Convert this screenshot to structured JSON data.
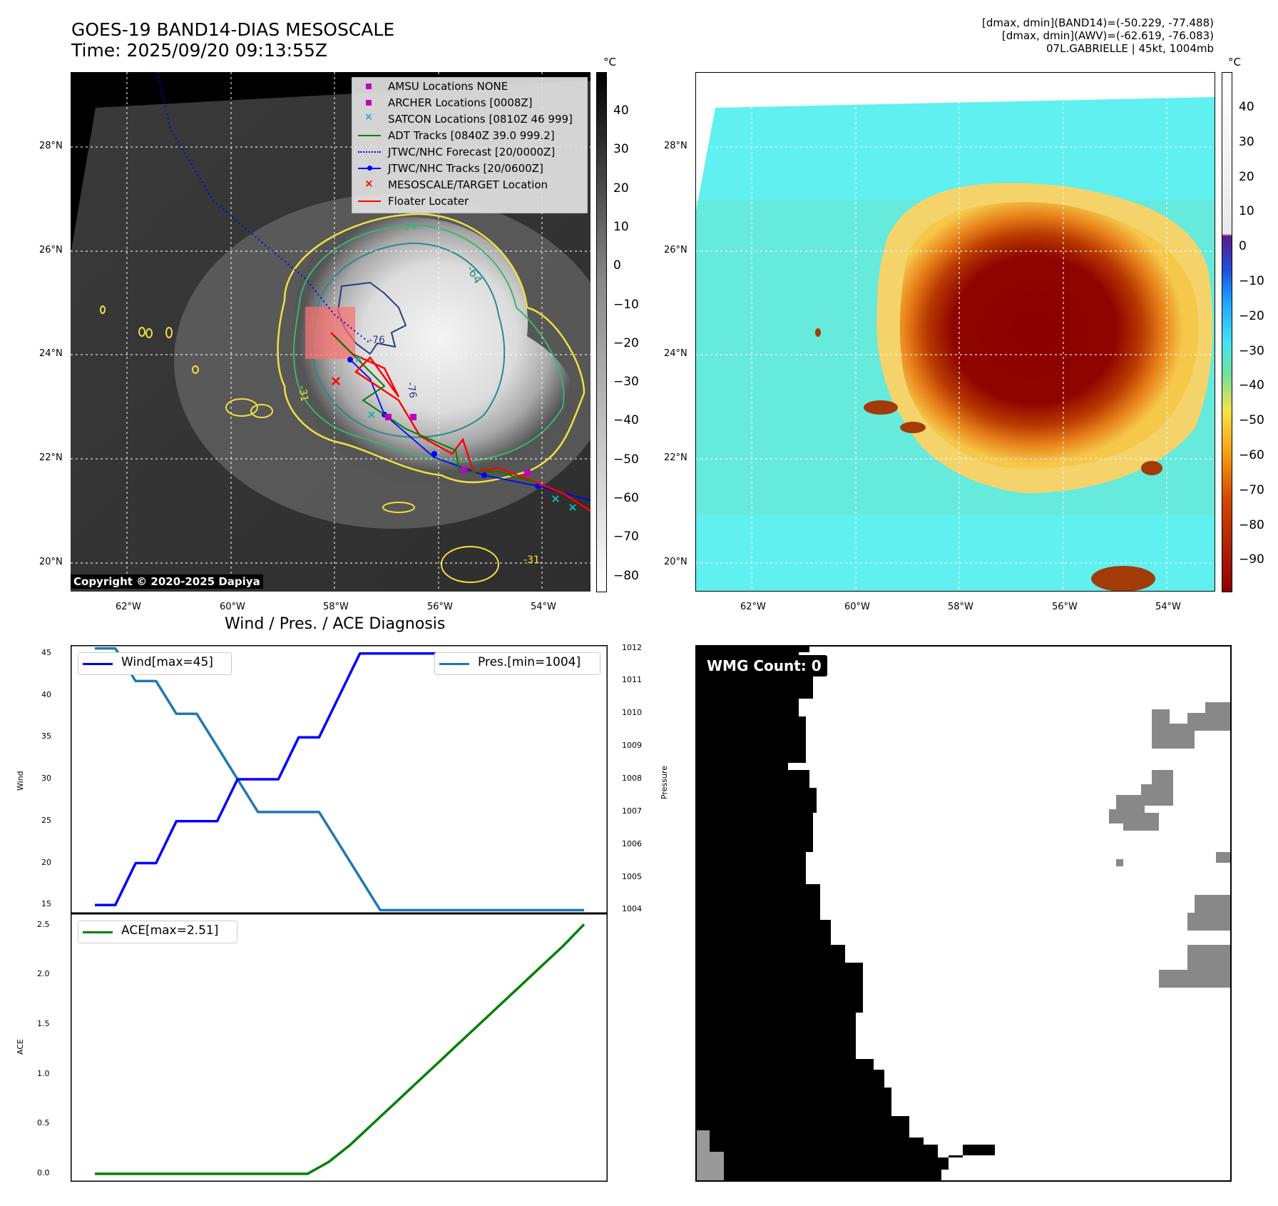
{
  "header": {
    "title_line1": "GOES-19 BAND14-DIAS MESOSCALE",
    "title_line2": "Time: 2025/09/20 09:13:55Z",
    "stats_line1": "[dmax, dmin](BAND14)=(-50.229, -77.488)",
    "stats_line2": "[dmax, dmin](AWV)=(-62.619, -76.083)",
    "stats_line3": "07L.GABRIELLE | 45kt, 1004mb"
  },
  "map_axes": {
    "lon_labels": [
      "62°W",
      "60°W",
      "58°W",
      "56°W",
      "54°W"
    ],
    "lat_labels": [
      "28°N",
      "26°N",
      "24°N",
      "22°N",
      "20°N"
    ]
  },
  "ir_panel": {
    "legend": [
      {
        "label": "AMSU Locations NONE",
        "marker": "square",
        "color": "#c000c0"
      },
      {
        "label": "ARCHER Locations [0008Z]",
        "marker": "square",
        "color": "#c000c0"
      },
      {
        "label": "SATCON Locations [0810Z 46 999]",
        "marker": "x",
        "color": "#20b0b0"
      },
      {
        "label": "ADT Tracks [0840Z 39.0 999.2]",
        "marker": "line",
        "color": "#008000"
      },
      {
        "label": "JTWC/NHC Forecast [20/0000Z]",
        "marker": "dotted",
        "color": "#0000ff"
      },
      {
        "label": "JTWC/NHC Tracks [20/0600Z]",
        "marker": "line-dot",
        "color": "#0000ff"
      },
      {
        "label": "MESOSCALE/TARGET Location",
        "marker": "x",
        "color": "#ff0000"
      },
      {
        "label": "Floater Locater",
        "marker": "line",
        "color": "#ff0000"
      }
    ],
    "contour_labels": [
      "-54",
      "-64",
      "-76",
      "-76",
      "-31",
      "-31"
    ],
    "copyright": "Copyright © 2020-2025 Dapiya",
    "colorbar_unit": "°C",
    "colorbar_ticks": [
      "40",
      "30",
      "20",
      "10",
      "0",
      "−10",
      "−20",
      "−30",
      "−40",
      "−50",
      "−60",
      "−70",
      "−80"
    ]
  },
  "awv_panel": {
    "colorbar_unit": "°C",
    "colorbar_ticks": [
      "40",
      "30",
      "20",
      "10",
      "0",
      "−10",
      "−20",
      "−30",
      "−40",
      "−50",
      "−60",
      "−70",
      "−80",
      "−90"
    ]
  },
  "wmg_panel": {
    "label": "WMG Count: 0"
  },
  "colors": {
    "wind": "#0000ff",
    "pressure": "#1f77b4",
    "ace": "#008000",
    "floater": "#ff0000"
  },
  "chart_data": [
    {
      "type": "line",
      "title": "Wind / Pres. / ACE Diagnosis",
      "ylabel": "Wind",
      "y2label": "Pressure",
      "ylim": [
        14,
        46
      ],
      "y2lim": [
        1003.9,
        1012.1
      ],
      "yticks": [
        "45",
        "40",
        "35",
        "30",
        "25",
        "20",
        "15"
      ],
      "y2ticks": [
        "1012",
        "1011",
        "1010",
        "1009",
        "1008",
        "1007",
        "1006",
        "1005",
        "1004"
      ],
      "series": [
        {
          "name": "Wind[max=45]",
          "axis": "left",
          "values": [
            15,
            15,
            20,
            20,
            25,
            25,
            25,
            30,
            30,
            30,
            35,
            35,
            40,
            45,
            45,
            45,
            45,
            45,
            45,
            45,
            45,
            45,
            45,
            45,
            45
          ]
        },
        {
          "name": "Pres.[min=1004]",
          "axis": "right",
          "values": [
            1012,
            1012,
            1011,
            1011,
            1010,
            1010,
            1009,
            1008,
            1007,
            1007,
            1007,
            1007,
            1006,
            1005,
            1004,
            1004,
            1004,
            1004,
            1004,
            1004,
            1004,
            1004,
            1004,
            1004,
            1004
          ]
        }
      ]
    },
    {
      "type": "line",
      "ylabel": "ACE",
      "ylim": [
        -0.08,
        2.62
      ],
      "yticks": [
        "2.5",
        "2.0",
        "1.5",
        "1.0",
        "0.5",
        "0.0"
      ],
      "series": [
        {
          "name": "ACE[max=2.51]",
          "values": [
            0,
            0,
            0,
            0,
            0,
            0,
            0,
            0,
            0,
            0,
            0,
            0.12,
            0.29,
            0.49,
            0.69,
            0.89,
            1.09,
            1.29,
            1.49,
            1.69,
            1.89,
            2.09,
            2.29,
            2.51
          ]
        }
      ]
    }
  ]
}
